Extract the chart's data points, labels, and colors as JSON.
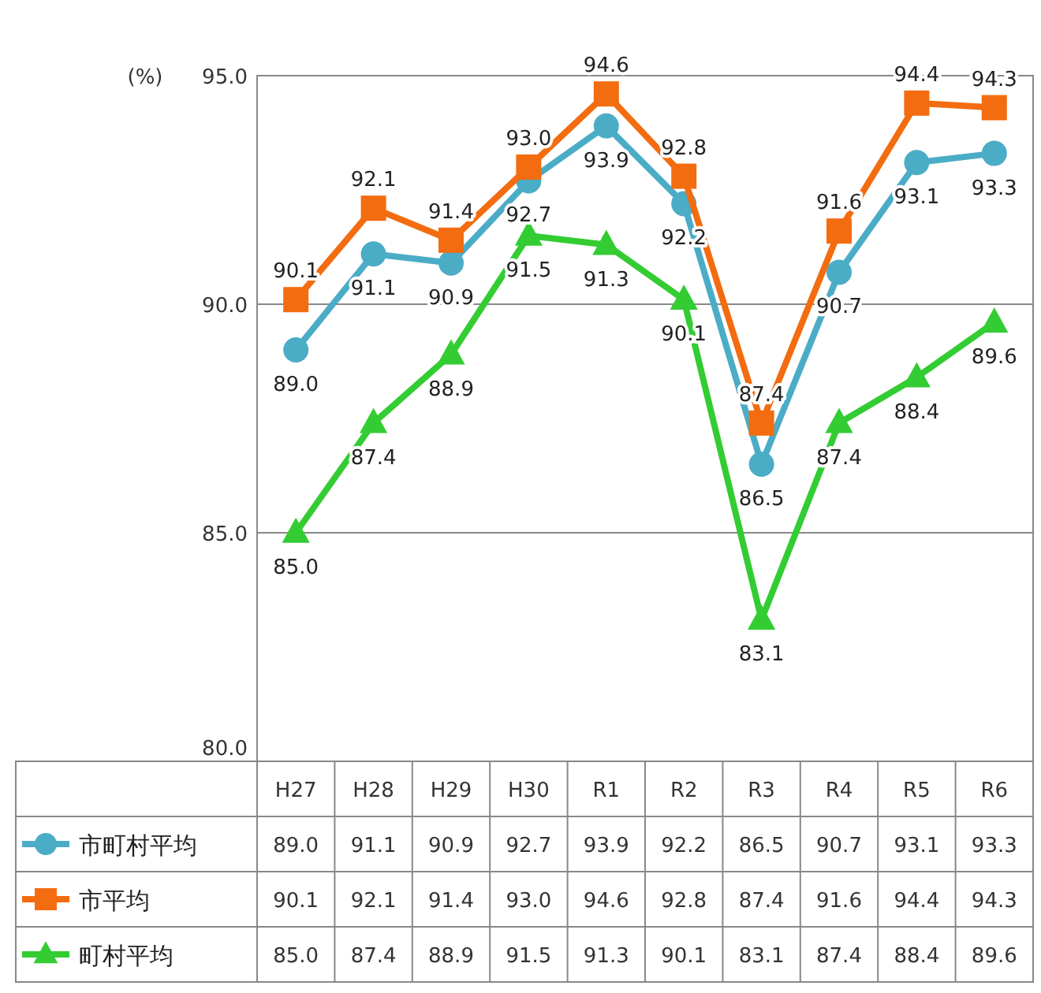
{
  "chart_data": {
    "type": "line",
    "ylabel": "(%)",
    "categories": [
      "H27",
      "H28",
      "H29",
      "H30",
      "R1",
      "R2",
      "R3",
      "R4",
      "R5",
      "R6"
    ],
    "ylim": [
      80,
      95
    ],
    "yticks": [
      {
        "value": 80,
        "label": "80.0"
      },
      {
        "value": 85,
        "label": "85.0"
      },
      {
        "value": 90,
        "label": "90.0"
      },
      {
        "value": 95,
        "label": "95.0"
      }
    ],
    "grid": "y",
    "legend": "bottom",
    "data_labels": true,
    "series": [
      {
        "name": "市町村平均",
        "color": "#4bacc6",
        "marker": "circle",
        "values": [
          89.0,
          91.1,
          90.9,
          92.7,
          93.9,
          92.2,
          86.5,
          90.7,
          93.1,
          93.3
        ],
        "value_labels": [
          "89.0",
          "91.1",
          "90.9",
          "92.7",
          "93.9",
          "92.2",
          "86.5",
          "90.7",
          "93.1",
          "93.3"
        ]
      },
      {
        "name": "市平均",
        "color": "#f36c0f",
        "marker": "square",
        "values": [
          90.1,
          92.1,
          91.4,
          93.0,
          94.6,
          92.8,
          87.4,
          91.6,
          94.4,
          94.3
        ],
        "value_labels": [
          "90.1",
          "92.1",
          "91.4",
          "93.0",
          "94.6",
          "92.8",
          "87.4",
          "91.6",
          "94.4",
          "94.3"
        ]
      },
      {
        "name": "町村平均",
        "color": "#33cc33",
        "marker": "triangle",
        "values": [
          85.0,
          87.4,
          88.9,
          91.5,
          91.3,
          90.1,
          83.1,
          87.4,
          88.4,
          89.6
        ],
        "value_labels": [
          "85.0",
          "87.4",
          "88.9",
          "91.5",
          "91.3",
          "90.1",
          "83.1",
          "87.4",
          "88.4",
          "89.6"
        ]
      }
    ]
  }
}
